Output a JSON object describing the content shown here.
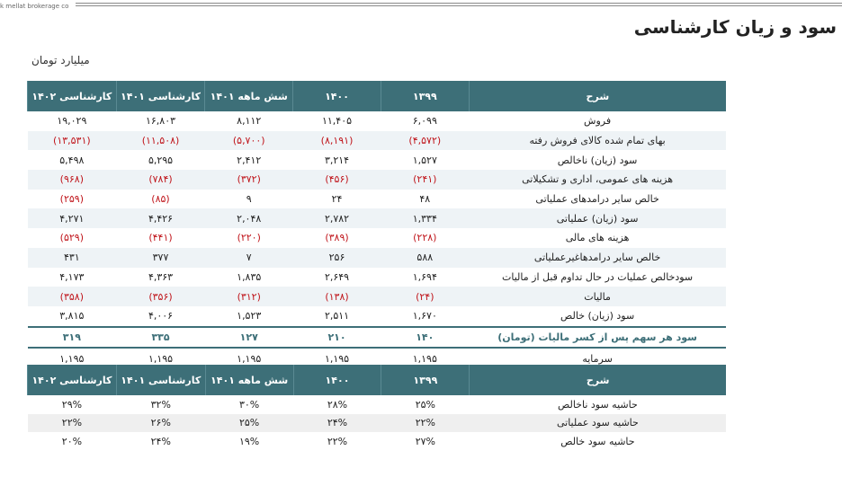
{
  "brand": "k mellat brokerage co",
  "title": "سود و زیان کارشناسی",
  "unit": "میلیارد تومان",
  "headers": [
    "شرح",
    "۱۳۹۹",
    "۱۴۰۰",
    "شش ماهه ۱۴۰۱",
    "کارشناسی ۱۴۰۱",
    "کارشناسی ۱۴۰۲"
  ],
  "rows": [
    {
      "label": "فروش",
      "values": [
        "۶,۰۹۹",
        "۱۱,۴۰۵",
        "۸,۱۱۲",
        "۱۶,۸۰۳",
        "۱۹,۰۲۹"
      ]
    },
    {
      "label": "بهای تمام شده کالای فروش رفته",
      "values": [
        "(۴,۵۷۲)",
        "(۸,۱۹۱)",
        "(۵,۷۰۰)",
        "(۱۱,۵۰۸)",
        "(۱۳,۵۳۱)"
      ]
    },
    {
      "label": "سود (زیان) ناخالص",
      "values": [
        "۱,۵۲۷",
        "۳,۲۱۴",
        "۲,۴۱۲",
        "۵,۲۹۵",
        "۵,۴۹۸"
      ]
    },
    {
      "label": "هزینه های عمومی، اداری و تشکیلاتی",
      "values": [
        "(۲۴۱)",
        "(۴۵۶)",
        "(۳۷۲)",
        "(۷۸۴)",
        "(۹۶۸)"
      ]
    },
    {
      "label": "خالص سایر درامدهای  عملیاتی",
      "values": [
        "۴۸",
        "۲۴",
        "۹",
        "(۸۵)",
        "(۲۵۹)"
      ]
    },
    {
      "label": "سود (زیان) عملیاتی",
      "values": [
        "۱,۳۳۴",
        "۲,۷۸۲",
        "۲,۰۴۸",
        "۴,۴۲۶",
        "۴,۲۷۱"
      ]
    },
    {
      "label": "هزینه های مالی",
      "values": [
        "(۲۲۸)",
        "(۳۸۹)",
        "(۲۲۰)",
        "(۴۴۱)",
        "(۵۲۹)"
      ]
    },
    {
      "label": "خالص سایر درامدهاغیرعملیاتی",
      "values": [
        "۵۸۸",
        "۲۵۶",
        "۷",
        "۳۷۷",
        "۴۳۱"
      ]
    },
    {
      "label": "سودخالص عملیات در حال تداوم قبل از مالیات",
      "values": [
        "۱,۶۹۴",
        "۲,۶۴۹",
        "۱,۸۳۵",
        "۴,۳۶۳",
        "۴,۱۷۳"
      ]
    },
    {
      "label": "مالیات",
      "values": [
        "(۲۴)",
        "(۱۳۸)",
        "(۳۱۲)",
        "(۳۵۶)",
        "(۳۵۸)"
      ]
    },
    {
      "label": "سود (زیان) خالص",
      "values": [
        "۱,۶۷۰",
        "۲,۵۱۱",
        "۱,۵۲۳",
        "۴,۰۰۶",
        "۳,۸۱۵"
      ]
    },
    {
      "label": "سود هر سهم پس از کسر مالیات (تومان)",
      "values": [
        "۱۴۰",
        "۲۱۰",
        "۱۲۷",
        "۳۳۵",
        "۳۱۹"
      ],
      "highlight": true
    },
    {
      "label": "سرمایه",
      "values": [
        "۱,۱۹۵",
        "۱,۱۹۵",
        "۱,۱۹۵",
        "۱,۱۹۵",
        "۱,۱۹۵"
      ]
    }
  ],
  "margins": [
    {
      "label": "حاشیه سود ناخالص",
      "values": [
        "۲۵%",
        "۲۸%",
        "۳۰%",
        "۳۲%",
        "۲۹%"
      ]
    },
    {
      "label": "حاشیه سود عملیاتی",
      "values": [
        "۲۲%",
        "۲۴%",
        "۲۵%",
        "۲۶%",
        "۲۲%"
      ]
    },
    {
      "label": "حاشیه سود خالص",
      "values": [
        "۲۷%",
        "۲۲%",
        "۱۹%",
        "۲۴%",
        "۲۰%"
      ]
    }
  ],
  "colors": {
    "header": "#3d6f78",
    "negative": "#c0161c"
  }
}
